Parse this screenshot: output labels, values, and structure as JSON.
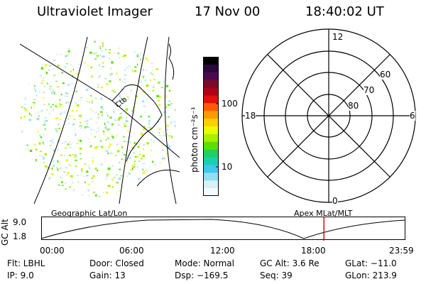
{
  "header": {
    "instrument": "Ultraviolet Imager",
    "date": "17 Nov 00",
    "time": "18:40:02 UT"
  },
  "colorbar": {
    "unit_label": "photon cm⁻²s⁻¹",
    "ticks": [
      "100",
      "10"
    ],
    "colors": [
      "#000000",
      "#2a0a3a",
      "#4b0a4f",
      "#7a0a2a",
      "#b00018",
      "#e0100f",
      "#ff5a00",
      "#ff9a00",
      "#ffd000",
      "#e6ff00",
      "#a8f000",
      "#5ae000",
      "#20d060",
      "#18d0b0",
      "#40c8e8",
      "#90e0f0",
      "#d8f0f8",
      "#f4fbfd"
    ]
  },
  "geo_panel": {
    "label": "Geographic Lat/Lon",
    "map_text": "Ctb"
  },
  "polar": {
    "label": "Apex MLat/MLT",
    "mlt_labels": [
      "12",
      "18",
      "6",
      "0"
    ],
    "lat_labels": [
      "60",
      "70",
      "80"
    ]
  },
  "timeline": {
    "axis_label": "GC Alt",
    "y_ticks": [
      "9.0",
      "1.8"
    ],
    "x_ticks": [
      "00:00",
      "06:00",
      "12:00",
      "18:00",
      "23:59"
    ],
    "marker_time": "18:40",
    "marker_color": "#cc0000"
  },
  "info": {
    "col1": [
      "Flt: LBHL",
      "IP:  9.0"
    ],
    "col2": [
      "Door: Closed",
      "Gain: 13"
    ],
    "col3": [
      "Mode: Normal",
      "Dsp: −169.5"
    ],
    "col4": [
      "GC Alt: 3.6 Re",
      "Seq: 39"
    ],
    "col5": [
      "GLat: −11.0",
      "GLon: 213.9"
    ]
  }
}
